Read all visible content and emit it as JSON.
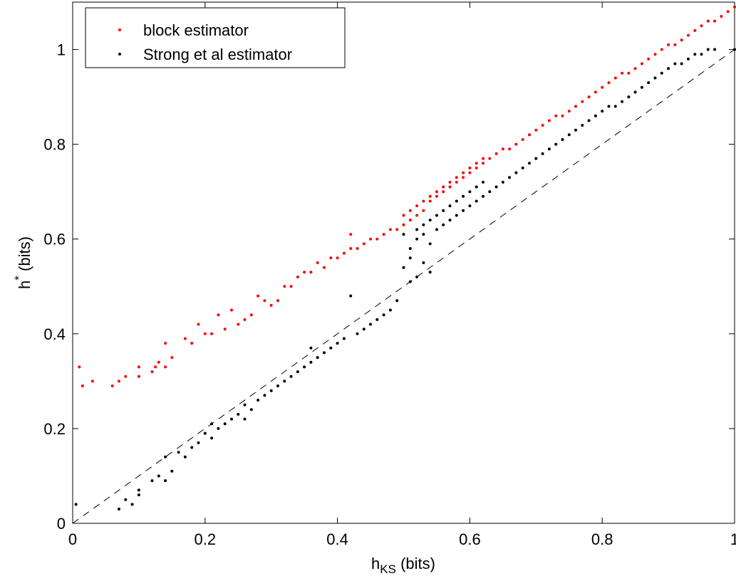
{
  "chart_data": {
    "type": "scatter",
    "xlabel": "h",
    "xlabel_sub": "KS",
    "xlabel_unit": " (bits)",
    "ylabel": "h",
    "ylabel_sup": "*",
    "ylabel_unit": " (bits)",
    "xlim": [
      0,
      1
    ],
    "ylim": [
      0,
      1.1
    ],
    "x_ticks": [
      0,
      0.2,
      0.4,
      0.6,
      0.8,
      1
    ],
    "x_tick_labels": [
      "0",
      "0.2",
      "0.4",
      "0.6",
      "0.8",
      "1"
    ],
    "y_ticks": [
      0,
      0.2,
      0.4,
      0.6,
      0.8,
      1
    ],
    "y_tick_labels": [
      "0",
      "0.2",
      "0.4",
      "0.6",
      "0.8",
      "1"
    ],
    "grid": false,
    "legend_position": "top-left",
    "reference_line": {
      "style": "dashed",
      "color": "#000000",
      "points": [
        [
          0,
          0
        ],
        [
          1,
          1
        ]
      ]
    },
    "series": [
      {
        "name": "block estimator",
        "color": "#ff0000",
        "points": [
          [
            0.01,
            0.33
          ],
          [
            0.015,
            0.29
          ],
          [
            0.03,
            0.3
          ],
          [
            0.06,
            0.29
          ],
          [
            0.07,
            0.3
          ],
          [
            0.08,
            0.31
          ],
          [
            0.1,
            0.31
          ],
          [
            0.1,
            0.33
          ],
          [
            0.12,
            0.32
          ],
          [
            0.125,
            0.33
          ],
          [
            0.13,
            0.34
          ],
          [
            0.14,
            0.33
          ],
          [
            0.14,
            0.38
          ],
          [
            0.15,
            0.35
          ],
          [
            0.17,
            0.39
          ],
          [
            0.18,
            0.38
          ],
          [
            0.19,
            0.42
          ],
          [
            0.2,
            0.4
          ],
          [
            0.21,
            0.4
          ],
          [
            0.22,
            0.44
          ],
          [
            0.23,
            0.41
          ],
          [
            0.24,
            0.45
          ],
          [
            0.25,
            0.42
          ],
          [
            0.26,
            0.43
          ],
          [
            0.27,
            0.44
          ],
          [
            0.28,
            0.48
          ],
          [
            0.29,
            0.47
          ],
          [
            0.3,
            0.46
          ],
          [
            0.31,
            0.47
          ],
          [
            0.32,
            0.5
          ],
          [
            0.33,
            0.5
          ],
          [
            0.34,
            0.52
          ],
          [
            0.35,
            0.53
          ],
          [
            0.36,
            0.53
          ],
          [
            0.37,
            0.55
          ],
          [
            0.38,
            0.54
          ],
          [
            0.39,
            0.56
          ],
          [
            0.4,
            0.56
          ],
          [
            0.41,
            0.57
          ],
          [
            0.42,
            0.61
          ],
          [
            0.42,
            0.58
          ],
          [
            0.43,
            0.58
          ],
          [
            0.44,
            0.59
          ],
          [
            0.45,
            0.6
          ],
          [
            0.46,
            0.6
          ],
          [
            0.47,
            0.61
          ],
          [
            0.48,
            0.62
          ],
          [
            0.49,
            0.62
          ],
          [
            0.5,
            0.63
          ],
          [
            0.5,
            0.65
          ],
          [
            0.51,
            0.66
          ],
          [
            0.51,
            0.64
          ],
          [
            0.52,
            0.67
          ],
          [
            0.52,
            0.65
          ],
          [
            0.53,
            0.68
          ],
          [
            0.53,
            0.66
          ],
          [
            0.54,
            0.69
          ],
          [
            0.54,
            0.68
          ],
          [
            0.55,
            0.7
          ],
          [
            0.55,
            0.69
          ],
          [
            0.56,
            0.7
          ],
          [
            0.56,
            0.71
          ],
          [
            0.57,
            0.72
          ],
          [
            0.57,
            0.71
          ],
          [
            0.58,
            0.73
          ],
          [
            0.58,
            0.72
          ],
          [
            0.59,
            0.74
          ],
          [
            0.59,
            0.73
          ],
          [
            0.6,
            0.75
          ],
          [
            0.6,
            0.74
          ],
          [
            0.61,
            0.75
          ],
          [
            0.61,
            0.76
          ],
          [
            0.62,
            0.76
          ],
          [
            0.62,
            0.77
          ],
          [
            0.63,
            0.77
          ],
          [
            0.64,
            0.78
          ],
          [
            0.65,
            0.79
          ],
          [
            0.66,
            0.79
          ],
          [
            0.67,
            0.8
          ],
          [
            0.68,
            0.81
          ],
          [
            0.69,
            0.82
          ],
          [
            0.7,
            0.83
          ],
          [
            0.71,
            0.84
          ],
          [
            0.72,
            0.85
          ],
          [
            0.73,
            0.86
          ],
          [
            0.74,
            0.86
          ],
          [
            0.75,
            0.87
          ],
          [
            0.76,
            0.88
          ],
          [
            0.77,
            0.89
          ],
          [
            0.78,
            0.9
          ],
          [
            0.79,
            0.91
          ],
          [
            0.8,
            0.92
          ],
          [
            0.81,
            0.93
          ],
          [
            0.82,
            0.94
          ],
          [
            0.83,
            0.95
          ],
          [
            0.84,
            0.95
          ],
          [
            0.85,
            0.96
          ],
          [
            0.86,
            0.97
          ],
          [
            0.87,
            0.98
          ],
          [
            0.88,
            0.99
          ],
          [
            0.89,
            1.0
          ],
          [
            0.9,
            1.01
          ],
          [
            0.91,
            1.01
          ],
          [
            0.92,
            1.02
          ],
          [
            0.93,
            1.03
          ],
          [
            0.94,
            1.04
          ],
          [
            0.95,
            1.05
          ],
          [
            0.96,
            1.06
          ],
          [
            0.97,
            1.06
          ],
          [
            0.98,
            1.07
          ],
          [
            0.99,
            1.08
          ],
          [
            1.0,
            1.09
          ]
        ]
      },
      {
        "name": "Strong et al estimator",
        "color": "#000000",
        "points": [
          [
            0.005,
            0.04
          ],
          [
            0.07,
            0.03
          ],
          [
            0.08,
            0.05
          ],
          [
            0.09,
            0.04
          ],
          [
            0.1,
            0.06
          ],
          [
            0.1,
            0.07
          ],
          [
            0.12,
            0.09
          ],
          [
            0.13,
            0.1
          ],
          [
            0.14,
            0.09
          ],
          [
            0.15,
            0.11
          ],
          [
            0.14,
            0.14
          ],
          [
            0.16,
            0.15
          ],
          [
            0.17,
            0.14
          ],
          [
            0.18,
            0.16
          ],
          [
            0.19,
            0.17
          ],
          [
            0.2,
            0.19
          ],
          [
            0.21,
            0.18
          ],
          [
            0.21,
            0.21
          ],
          [
            0.22,
            0.2
          ],
          [
            0.23,
            0.21
          ],
          [
            0.24,
            0.22
          ],
          [
            0.25,
            0.23
          ],
          [
            0.26,
            0.22
          ],
          [
            0.26,
            0.25
          ],
          [
            0.27,
            0.24
          ],
          [
            0.28,
            0.26
          ],
          [
            0.29,
            0.27
          ],
          [
            0.3,
            0.28
          ],
          [
            0.31,
            0.29
          ],
          [
            0.32,
            0.3
          ],
          [
            0.33,
            0.31
          ],
          [
            0.34,
            0.32
          ],
          [
            0.35,
            0.33
          ],
          [
            0.36,
            0.34
          ],
          [
            0.36,
            0.37
          ],
          [
            0.37,
            0.35
          ],
          [
            0.38,
            0.36
          ],
          [
            0.39,
            0.37
          ],
          [
            0.4,
            0.38
          ],
          [
            0.41,
            0.39
          ],
          [
            0.42,
            0.48
          ],
          [
            0.43,
            0.4
          ],
          [
            0.44,
            0.41
          ],
          [
            0.45,
            0.42
          ],
          [
            0.46,
            0.43
          ],
          [
            0.47,
            0.44
          ],
          [
            0.48,
            0.45
          ],
          [
            0.49,
            0.47
          ],
          [
            0.5,
            0.54
          ],
          [
            0.51,
            0.56
          ],
          [
            0.51,
            0.51
          ],
          [
            0.52,
            0.52
          ],
          [
            0.53,
            0.55
          ],
          [
            0.54,
            0.53
          ],
          [
            0.5,
            0.61
          ],
          [
            0.51,
            0.58
          ],
          [
            0.52,
            0.62
          ],
          [
            0.52,
            0.6
          ],
          [
            0.53,
            0.63
          ],
          [
            0.53,
            0.61
          ],
          [
            0.54,
            0.64
          ],
          [
            0.54,
            0.59
          ],
          [
            0.55,
            0.65
          ],
          [
            0.55,
            0.62
          ],
          [
            0.56,
            0.66
          ],
          [
            0.56,
            0.63
          ],
          [
            0.57,
            0.67
          ],
          [
            0.57,
            0.64
          ],
          [
            0.58,
            0.68
          ],
          [
            0.58,
            0.65
          ],
          [
            0.59,
            0.69
          ],
          [
            0.59,
            0.66
          ],
          [
            0.6,
            0.7
          ],
          [
            0.6,
            0.67
          ],
          [
            0.61,
            0.71
          ],
          [
            0.61,
            0.68
          ],
          [
            0.62,
            0.72
          ],
          [
            0.62,
            0.69
          ],
          [
            0.63,
            0.7
          ],
          [
            0.64,
            0.71
          ],
          [
            0.65,
            0.72
          ],
          [
            0.66,
            0.73
          ],
          [
            0.67,
            0.74
          ],
          [
            0.68,
            0.75
          ],
          [
            0.69,
            0.76
          ],
          [
            0.7,
            0.77
          ],
          [
            0.71,
            0.78
          ],
          [
            0.72,
            0.79
          ],
          [
            0.73,
            0.8
          ],
          [
            0.74,
            0.81
          ],
          [
            0.75,
            0.82
          ],
          [
            0.76,
            0.83
          ],
          [
            0.77,
            0.84
          ],
          [
            0.78,
            0.85
          ],
          [
            0.79,
            0.86
          ],
          [
            0.8,
            0.87
          ],
          [
            0.81,
            0.88
          ],
          [
            0.82,
            0.88
          ],
          [
            0.83,
            0.89
          ],
          [
            0.84,
            0.9
          ],
          [
            0.85,
            0.91
          ],
          [
            0.86,
            0.92
          ],
          [
            0.87,
            0.93
          ],
          [
            0.88,
            0.94
          ],
          [
            0.89,
            0.95
          ],
          [
            0.9,
            0.96
          ],
          [
            0.91,
            0.97
          ],
          [
            0.92,
            0.97
          ],
          [
            0.93,
            0.98
          ],
          [
            0.94,
            0.99
          ],
          [
            0.95,
            0.99
          ],
          [
            0.96,
            1.0
          ],
          [
            0.97,
            1.0
          ],
          [
            1.0,
            1.0
          ]
        ]
      }
    ]
  }
}
